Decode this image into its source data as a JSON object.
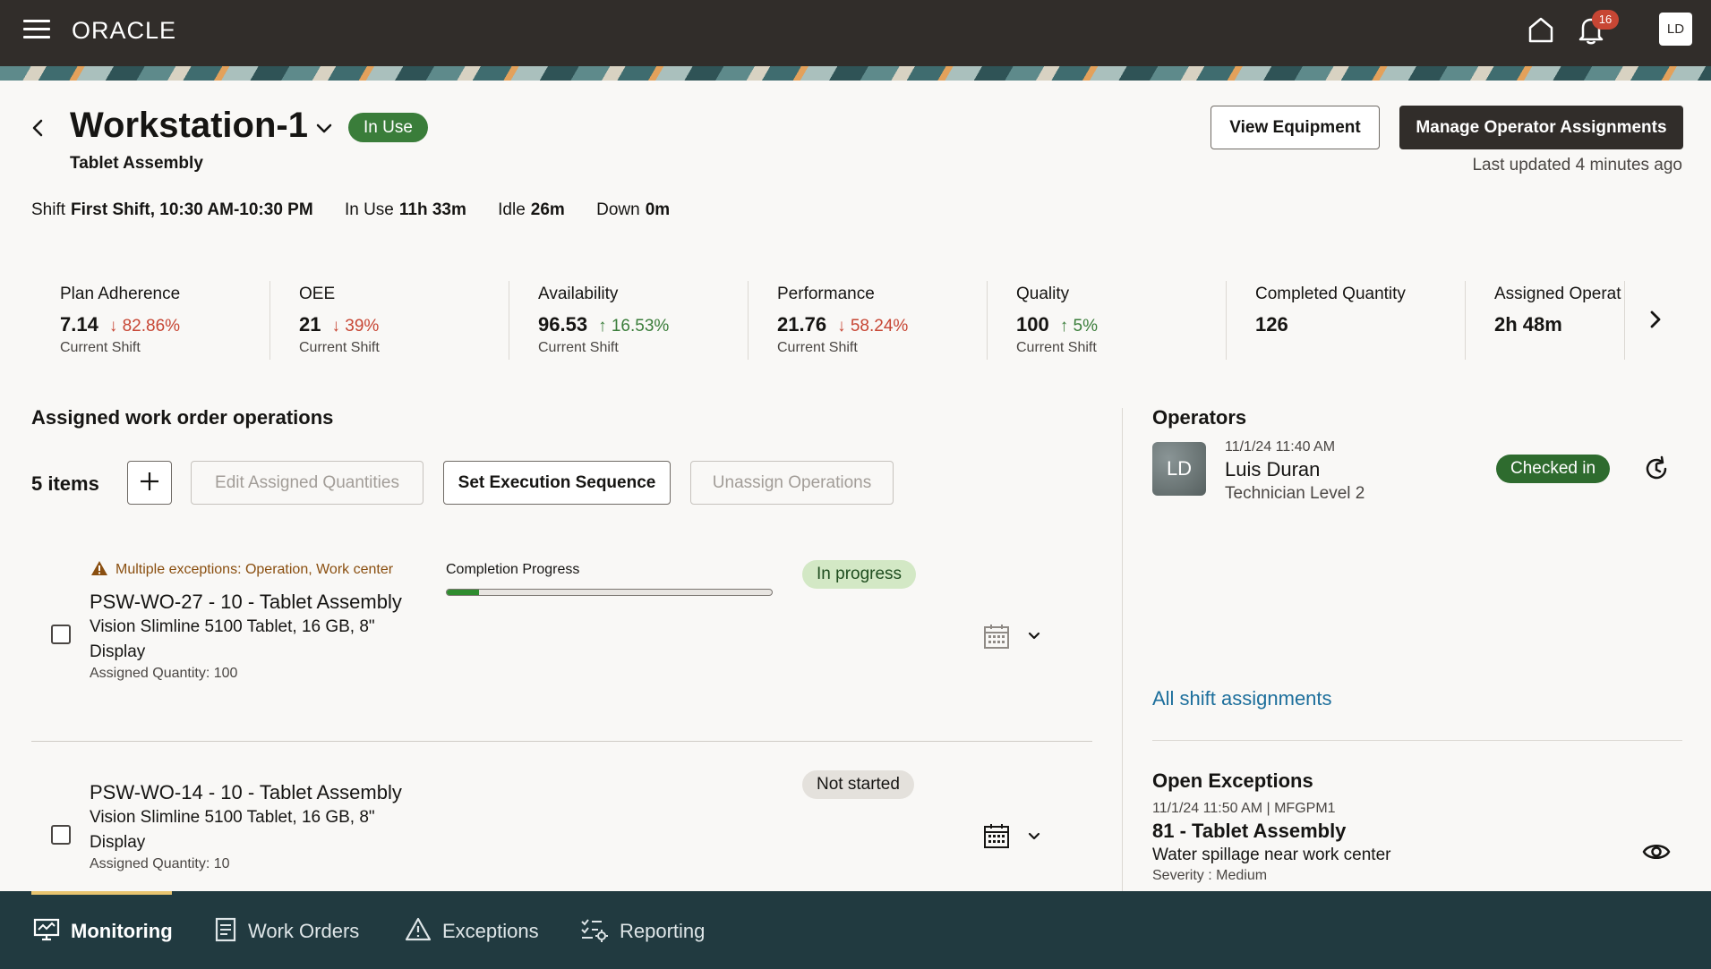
{
  "header": {
    "logo": "ORACLE",
    "notifications_count": "16",
    "user_initials": "LD"
  },
  "page": {
    "title": "Workstation-1",
    "status": "In Use",
    "subtitle": "Tablet Assembly",
    "view_equipment": "View Equipment",
    "manage_assignments": "Manage Operator Assignments",
    "last_updated": "Last updated 4 minutes ago"
  },
  "shift": {
    "shift_label": "Shift",
    "shift_value": "First Shift, 10:30 AM-10:30 PM",
    "inuse_label": "In Use",
    "inuse_value": "11h 33m",
    "idle_label": "Idle",
    "idle_value": "26m",
    "down_label": "Down",
    "down_value": "0m"
  },
  "kpis": [
    {
      "label": "Plan Adherence",
      "value": "7.14",
      "delta": "82.86%",
      "trend": "down",
      "sub": "Current Shift"
    },
    {
      "label": "OEE",
      "value": "21",
      "delta": "39%",
      "trend": "down",
      "sub": "Current Shift"
    },
    {
      "label": "Availability",
      "value": "96.53",
      "delta": "16.53%",
      "trend": "up",
      "sub": "Current Shift"
    },
    {
      "label": "Performance",
      "value": "21.76",
      "delta": "58.24%",
      "trend": "down",
      "sub": "Current Shift"
    },
    {
      "label": "Quality",
      "value": "100",
      "delta": "5%",
      "trend": "up",
      "sub": "Current Shift"
    },
    {
      "label": "Completed Quantity",
      "value": "126",
      "delta": "",
      "trend": "",
      "sub": ""
    },
    {
      "label": "Assigned Operat",
      "value": "2h 48m",
      "delta": "",
      "trend": "",
      "sub": ""
    }
  ],
  "operations": {
    "title": "Assigned work order operations",
    "count": "5 items",
    "edit_quantities": "Edit Assigned Quantities",
    "set_sequence": "Set Execution Sequence",
    "unassign": "Unassign Operations",
    "items": [
      {
        "exception": "Multiple exceptions: Operation, Work center",
        "title": "PSW-WO-27 - 10 - Tablet Assembly",
        "desc": "Vision Slimline 5100 Tablet, 16 GB, 8\" Display",
        "qty": "Assigned Quantity: 100",
        "progress_label": "Completion Progress",
        "progress": 0.1,
        "state": "In progress"
      },
      {
        "exception": "",
        "title": "PSW-WO-14 - 10 - Tablet Assembly",
        "desc": "Vision Slimline 5100 Tablet, 16 GB, 8\" Display",
        "qty": "Assigned Quantity: 10",
        "progress_label": "",
        "progress": 0,
        "state": "Not started"
      }
    ]
  },
  "operators": {
    "title": "Operators",
    "initials": "LD",
    "time": "11/1/24 11:40 AM",
    "name": "Luis Duran",
    "role": "Technician Level 2",
    "status": "Checked in",
    "all_shift": "All shift assignments"
  },
  "exceptions": {
    "title": "Open Exceptions",
    "meta": "11/1/24 11:50 AM | MFGPM1",
    "name": "81 - Tablet Assembly",
    "desc": "Water spillage near work center",
    "severity": "Severity : Medium"
  },
  "nav": {
    "monitoring": "Monitoring",
    "work_orders": "Work Orders",
    "exceptions": "Exceptions",
    "reporting": "Reporting"
  },
  "colors": {
    "topbar": "#312d2a",
    "in_use": "#3a7d3a",
    "down_trend": "#c74634",
    "up_trend": "#3a7d3a",
    "link": "#1d6f9c",
    "bottom_nav": "#213a40"
  }
}
